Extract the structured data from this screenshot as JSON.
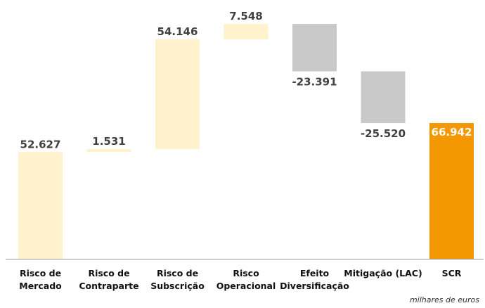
{
  "chart_data": {
    "type": "bar",
    "variant": "waterfall",
    "categories": [
      [
        "Risco de",
        "Mercado"
      ],
      [
        "Risco de",
        "Contraparte"
      ],
      [
        "Risco de",
        "Subscrição"
      ],
      [
        "Risco",
        "Operacional"
      ],
      [
        "Efeito",
        "Diversificação"
      ],
      [
        "Mitigação (LAC)"
      ],
      [
        "SCR"
      ]
    ],
    "values": [
      52627,
      1531,
      54146,
      7548,
      -23391,
      -25520,
      66942
    ],
    "value_labels": [
      "52.627",
      "1.531",
      "54.146",
      "7.548",
      "-23.391",
      "-25.520",
      "66.942"
    ],
    "bar_kinds": [
      "increase",
      "increase",
      "increase",
      "increase",
      "decrease",
      "decrease",
      "total"
    ],
    "ylim": [
      0,
      115852
    ],
    "grid": false,
    "colors": {
      "increase": "#fff2cc",
      "decrease": "#c9c9c9",
      "total": "#f39800",
      "label": "#404040",
      "total_label": "#ffffff",
      "axis": "#999999"
    },
    "units_note": "milhares de euros"
  }
}
